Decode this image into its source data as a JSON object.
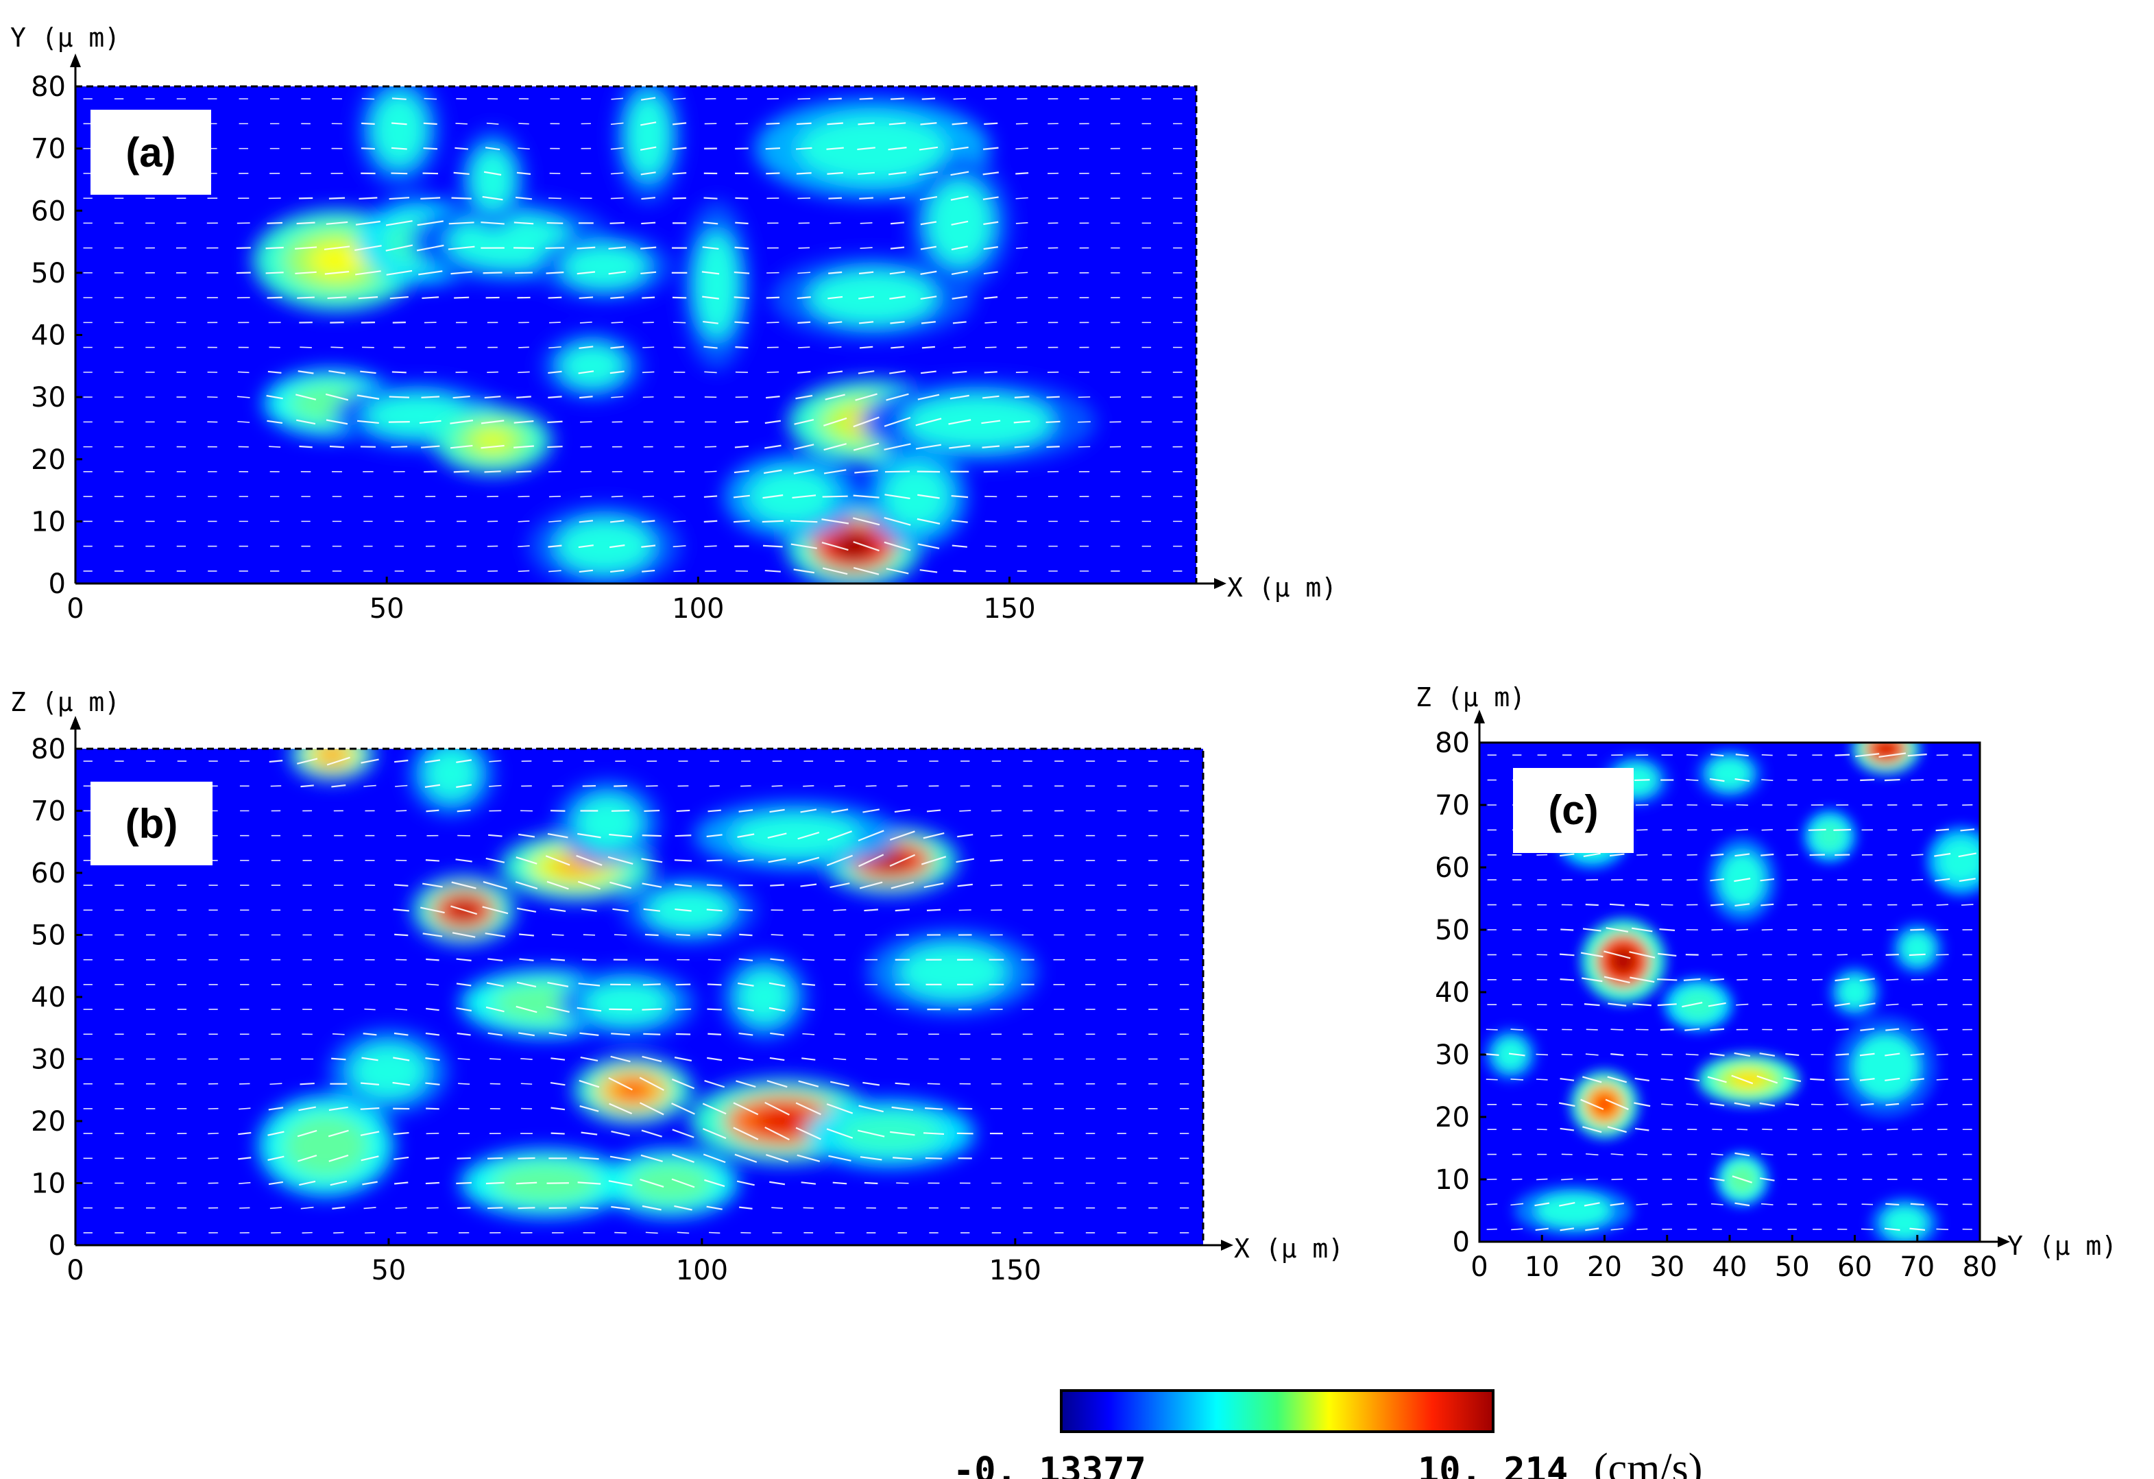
{
  "chart_data": [
    {
      "type": "heatmap",
      "panel_label": "(a)",
      "xlabel": "X (μ m)",
      "ylabel": "Y (μ m)",
      "xlim": [
        0,
        180
      ],
      "ylim": [
        0,
        80
      ],
      "xticks": [
        "0",
        "50",
        "100",
        "150"
      ],
      "yticks": [
        "0",
        "10",
        "20",
        "30",
        "40",
        "50",
        "60",
        "70",
        "80"
      ],
      "vector_overlay": true,
      "hotspots": [
        {
          "x": 42,
          "y": 52,
          "v": 0.62,
          "rx": 10,
          "ry": 6
        },
        {
          "x": 56,
          "y": 55,
          "v": 0.5,
          "rx": 8,
          "ry": 5
        },
        {
          "x": 70,
          "y": 55,
          "v": 0.3,
          "rx": 12,
          "ry": 5
        },
        {
          "x": 85,
          "y": 51,
          "v": 0.3,
          "rx": 8,
          "ry": 4
        },
        {
          "x": 41,
          "y": 29,
          "v": 0.55,
          "rx": 8,
          "ry": 4
        },
        {
          "x": 55,
          "y": 27,
          "v": 0.3,
          "rx": 10,
          "ry": 4
        },
        {
          "x": 67,
          "y": 23,
          "v": 0.6,
          "rx": 7,
          "ry": 4
        },
        {
          "x": 83,
          "y": 35,
          "v": 0.3,
          "rx": 6,
          "ry": 4
        },
        {
          "x": 85,
          "y": 6,
          "v": 0.3,
          "rx": 9,
          "ry": 5
        },
        {
          "x": 52,
          "y": 73,
          "v": 0.3,
          "rx": 5,
          "ry": 7
        },
        {
          "x": 67,
          "y": 65,
          "v": 0.3,
          "rx": 4,
          "ry": 6
        },
        {
          "x": 92,
          "y": 72,
          "v": 0.3,
          "rx": 4,
          "ry": 8
        },
        {
          "x": 103,
          "y": 48,
          "v": 0.3,
          "rx": 4,
          "ry": 10
        },
        {
          "x": 128,
          "y": 70,
          "v": 0.42,
          "rx": 14,
          "ry": 6
        },
        {
          "x": 142,
          "y": 58,
          "v": 0.3,
          "rx": 6,
          "ry": 8
        },
        {
          "x": 128,
          "y": 46,
          "v": 0.3,
          "rx": 12,
          "ry": 5
        },
        {
          "x": 128,
          "y": 26,
          "v": 0.65,
          "rx": 10,
          "ry": 5
        },
        {
          "x": 145,
          "y": 26,
          "v": 0.3,
          "rx": 14,
          "ry": 5
        },
        {
          "x": 125,
          "y": 6,
          "v": 0.98,
          "rx": 8,
          "ry": 5
        },
        {
          "x": 115,
          "y": 14,
          "v": 0.4,
          "rx": 8,
          "ry": 5
        },
        {
          "x": 135,
          "y": 14,
          "v": 0.4,
          "rx": 6,
          "ry": 6
        }
      ]
    },
    {
      "type": "heatmap",
      "panel_label": "(b)",
      "xlabel": "X (μ m)",
      "ylabel": "Z (μ m)",
      "xlim": [
        0,
        180
      ],
      "ylim": [
        0,
        80
      ],
      "xticks": [
        "0",
        "50",
        "100",
        "150"
      ],
      "yticks": [
        "0",
        "10",
        "20",
        "30",
        "40",
        "50",
        "60",
        "70",
        "80"
      ],
      "vector_overlay": true,
      "hotspots": [
        {
          "x": 41,
          "y": 79,
          "v": 0.75,
          "rx": 5,
          "ry": 3
        },
        {
          "x": 62,
          "y": 54,
          "v": 0.95,
          "rx": 6,
          "ry": 4
        },
        {
          "x": 80,
          "y": 61,
          "v": 0.7,
          "rx": 9,
          "ry": 4
        },
        {
          "x": 85,
          "y": 68,
          "v": 0.35,
          "rx": 6,
          "ry": 5
        },
        {
          "x": 130,
          "y": 62,
          "v": 0.95,
          "rx": 8,
          "ry": 4
        },
        {
          "x": 115,
          "y": 66,
          "v": 0.4,
          "rx": 12,
          "ry": 4
        },
        {
          "x": 75,
          "y": 39,
          "v": 0.55,
          "rx": 10,
          "ry": 4
        },
        {
          "x": 88,
          "y": 39,
          "v": 0.35,
          "rx": 8,
          "ry": 4
        },
        {
          "x": 110,
          "y": 40,
          "v": 0.35,
          "rx": 5,
          "ry": 5
        },
        {
          "x": 140,
          "y": 44,
          "v": 0.35,
          "rx": 10,
          "ry": 5
        },
        {
          "x": 40,
          "y": 16,
          "v": 0.55,
          "rx": 8,
          "ry": 6
        },
        {
          "x": 50,
          "y": 28,
          "v": 0.35,
          "rx": 7,
          "ry": 5
        },
        {
          "x": 89,
          "y": 25,
          "v": 0.8,
          "rx": 7,
          "ry": 4
        },
        {
          "x": 113,
          "y": 20,
          "v": 0.9,
          "rx": 11,
          "ry": 5
        },
        {
          "x": 130,
          "y": 18,
          "v": 0.5,
          "rx": 10,
          "ry": 4
        },
        {
          "x": 75,
          "y": 10,
          "v": 0.55,
          "rx": 10,
          "ry": 4
        },
        {
          "x": 95,
          "y": 10,
          "v": 0.55,
          "rx": 8,
          "ry": 4
        },
        {
          "x": 60,
          "y": 76,
          "v": 0.35,
          "rx": 5,
          "ry": 5
        },
        {
          "x": 98,
          "y": 54,
          "v": 0.3,
          "rx": 8,
          "ry": 4
        }
      ]
    },
    {
      "type": "heatmap",
      "panel_label": "(c)",
      "xlabel": "Y (μ m)",
      "ylabel": "Z (μ m)",
      "xlim": [
        0,
        80
      ],
      "ylim": [
        0,
        80
      ],
      "xticks": [
        "0",
        "10",
        "20",
        "30",
        "40",
        "50",
        "60",
        "70",
        "80"
      ],
      "yticks": [
        "0",
        "10",
        "20",
        "30",
        "40",
        "50",
        "60",
        "70",
        "80"
      ],
      "vector_overlay": true,
      "hotspots": [
        {
          "x": 65,
          "y": 79,
          "v": 0.92,
          "rx": 4,
          "ry": 3
        },
        {
          "x": 23,
          "y": 45,
          "v": 0.95,
          "rx": 5,
          "ry": 5
        },
        {
          "x": 20,
          "y": 22,
          "v": 0.82,
          "rx": 4,
          "ry": 4
        },
        {
          "x": 43,
          "y": 26,
          "v": 0.65,
          "rx": 6,
          "ry": 3
        },
        {
          "x": 42,
          "y": 10,
          "v": 0.55,
          "rx": 3,
          "ry": 3
        },
        {
          "x": 18,
          "y": 64,
          "v": 0.45,
          "rx": 4,
          "ry": 3
        },
        {
          "x": 56,
          "y": 65,
          "v": 0.5,
          "rx": 3,
          "ry": 3
        },
        {
          "x": 77,
          "y": 61,
          "v": 0.45,
          "rx": 4,
          "ry": 4
        },
        {
          "x": 42,
          "y": 58,
          "v": 0.35,
          "rx": 4,
          "ry": 5
        },
        {
          "x": 35,
          "y": 38,
          "v": 0.5,
          "rx": 4,
          "ry": 3
        },
        {
          "x": 60,
          "y": 40,
          "v": 0.35,
          "rx": 3,
          "ry": 3
        },
        {
          "x": 70,
          "y": 47,
          "v": 0.35,
          "rx": 3,
          "ry": 3
        },
        {
          "x": 65,
          "y": 28,
          "v": 0.3,
          "rx": 6,
          "ry": 6
        },
        {
          "x": 5,
          "y": 30,
          "v": 0.35,
          "rx": 3,
          "ry": 3
        },
        {
          "x": 15,
          "y": 5,
          "v": 0.35,
          "rx": 7,
          "ry": 3
        },
        {
          "x": 68,
          "y": 3,
          "v": 0.35,
          "rx": 4,
          "ry": 3
        },
        {
          "x": 25,
          "y": 74,
          "v": 0.3,
          "rx": 4,
          "ry": 3
        },
        {
          "x": 40,
          "y": 75,
          "v": 0.3,
          "rx": 4,
          "ry": 3
        }
      ]
    }
  ],
  "colorbar": {
    "min_label": "-0. 13377",
    "max_label": "10. 214",
    "unit": "(cm/s)",
    "min": -0.13377,
    "max": 10.214
  }
}
